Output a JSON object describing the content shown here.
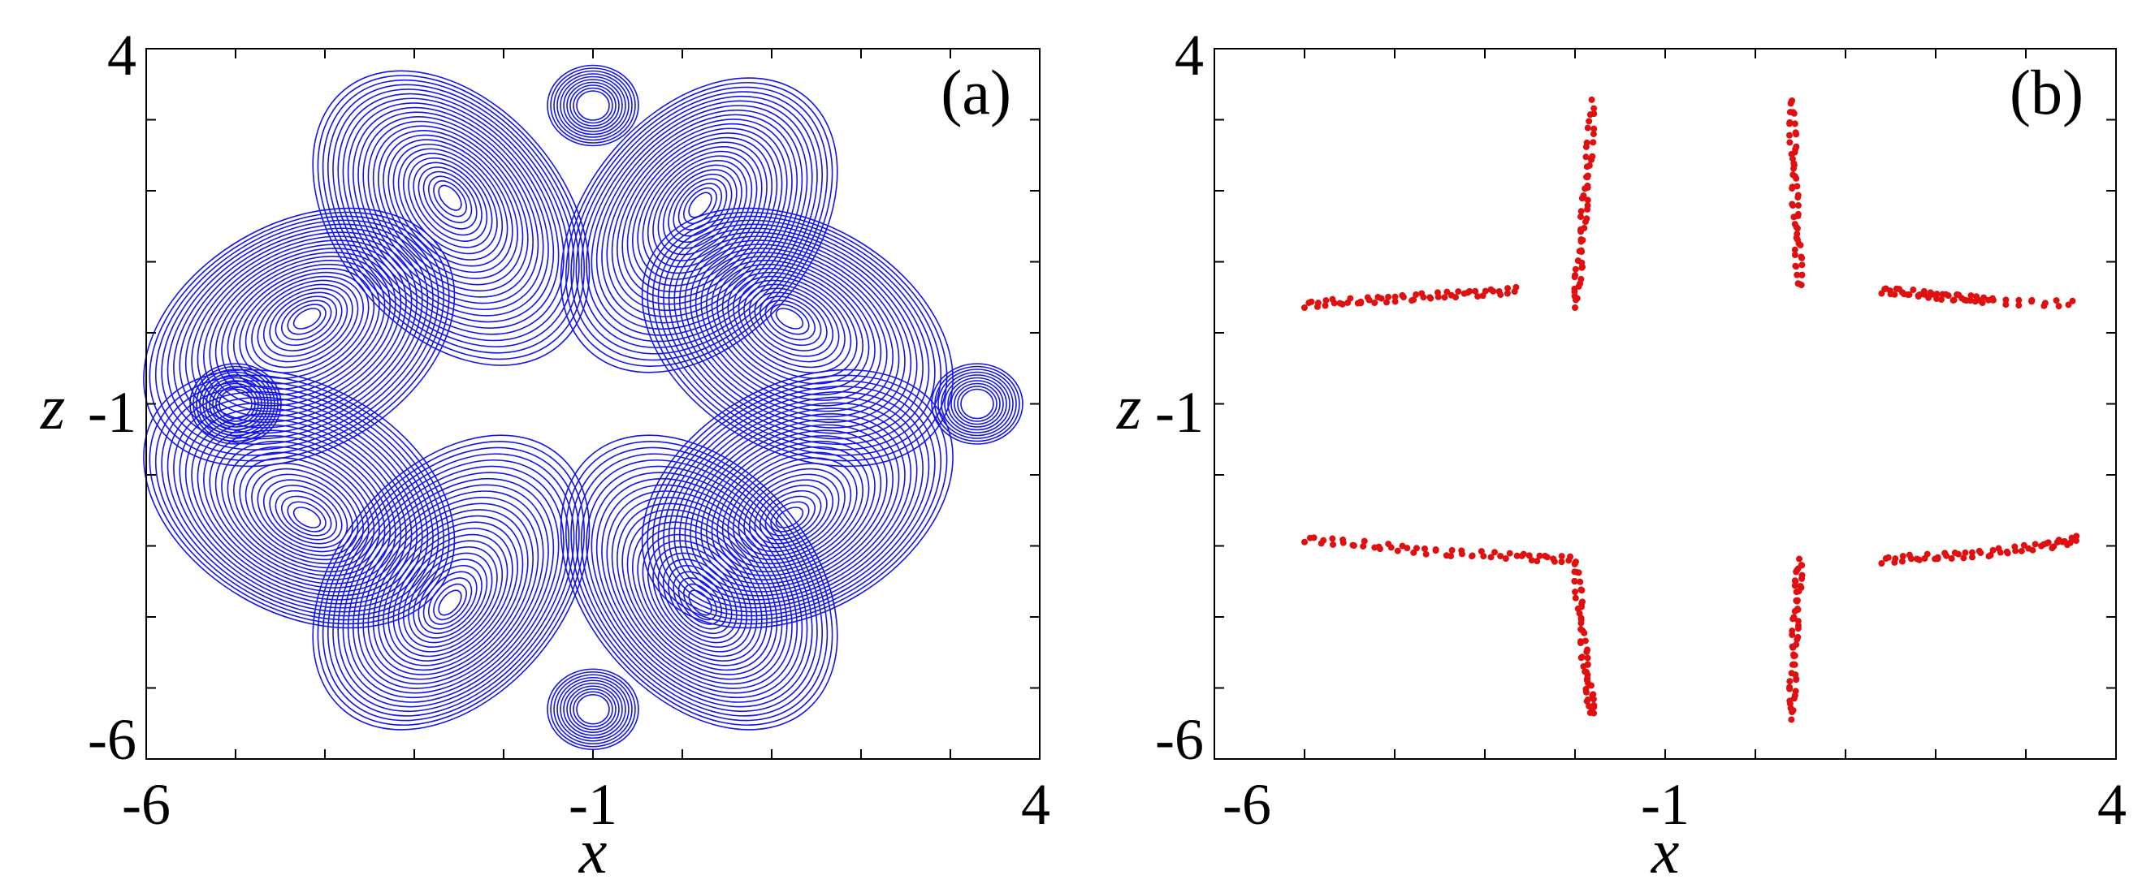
{
  "colors": {
    "blue": "#1414f0",
    "red": "#e01010",
    "axis": "#000000",
    "background": "#ffffff"
  },
  "chart_data": [
    {
      "type": "line",
      "panel_label": "(a)",
      "xlabel": "x",
      "ylabel": "z",
      "xlim": [
        -6,
        4
      ],
      "ylim": [
        -6,
        4
      ],
      "xticks": [
        -6,
        -1,
        4
      ],
      "yticks": [
        4,
        -1,
        -6
      ],
      "xtick_labels": [
        "-6",
        "-1",
        "4"
      ],
      "ytick_labels": [
        "4",
        "-1",
        "-6"
      ],
      "grid": false,
      "series": [
        {
          "color": "#1414f0",
          "description_centers": [
            {
              "x": -4.2,
              "z": 0.2
            },
            {
              "x": -2.6,
              "z": 1.9
            },
            {
              "x": 0.2,
              "z": 1.8
            },
            {
              "x": 1.2,
              "z": 0.2
            },
            {
              "x": -4.2,
              "z": -2.6
            },
            {
              "x": -2.6,
              "z": -3.8
            },
            {
              "x": 0.2,
              "z": -3.8
            },
            {
              "x": 1.2,
              "z": -2.6
            }
          ]
        }
      ]
    },
    {
      "type": "scatter",
      "panel_label": "(b)",
      "xlabel": "x",
      "ylabel": "z",
      "xlim": [
        -6,
        4
      ],
      "ylim": [
        -6,
        4
      ],
      "xticks": [
        -6,
        -1,
        4
      ],
      "yticks": [
        4,
        -1,
        -6
      ],
      "xtick_labels": [
        "-6",
        "-1",
        "4"
      ],
      "ytick_labels": [
        "4",
        "-1",
        "-6"
      ],
      "grid": false,
      "series": [
        {
          "color": "#e01010",
          "segments": [
            {
              "x": [
                -5.0,
                -4.4,
                -3.8,
                -3.2,
                -2.6
              ],
              "z": [
                0.4,
                0.45,
                0.5,
                0.55,
                0.6
              ]
            },
            {
              "x": [
                -2.0,
                -1.95,
                -1.9,
                -1.85,
                -1.8
              ],
              "z": [
                0.4,
                1.0,
                1.7,
                2.4,
                3.3
              ]
            },
            {
              "x": [
                0.4,
                0.42,
                0.44,
                0.47,
                0.5
              ],
              "z": [
                3.3,
                2.6,
                1.9,
                1.2,
                0.6
              ]
            },
            {
              "x": [
                1.4,
                1.8,
                2.2,
                2.6,
                3.6
              ],
              "z": [
                0.6,
                0.55,
                0.5,
                0.45,
                0.4
              ]
            },
            {
              "x": [
                -5.0,
                -4.2,
                -3.4,
                -2.6,
                -2.0
              ],
              "z": [
                -2.9,
                -3.0,
                -3.1,
                -3.15,
                -3.2
              ]
            },
            {
              "x": [
                -2.0,
                -1.95,
                -1.9,
                -1.85,
                -1.8
              ],
              "z": [
                -3.2,
                -3.8,
                -4.5,
                -5.0,
                -5.4
              ]
            },
            {
              "x": [
                0.4,
                0.42,
                0.44,
                0.47,
                0.5
              ],
              "z": [
                -5.4,
                -4.8,
                -4.2,
                -3.6,
                -3.2
              ]
            },
            {
              "x": [
                1.4,
                2.0,
                2.6,
                3.2,
                3.6
              ],
              "z": [
                -3.2,
                -3.15,
                -3.1,
                -3.0,
                -2.9
              ]
            }
          ]
        }
      ]
    }
  ]
}
